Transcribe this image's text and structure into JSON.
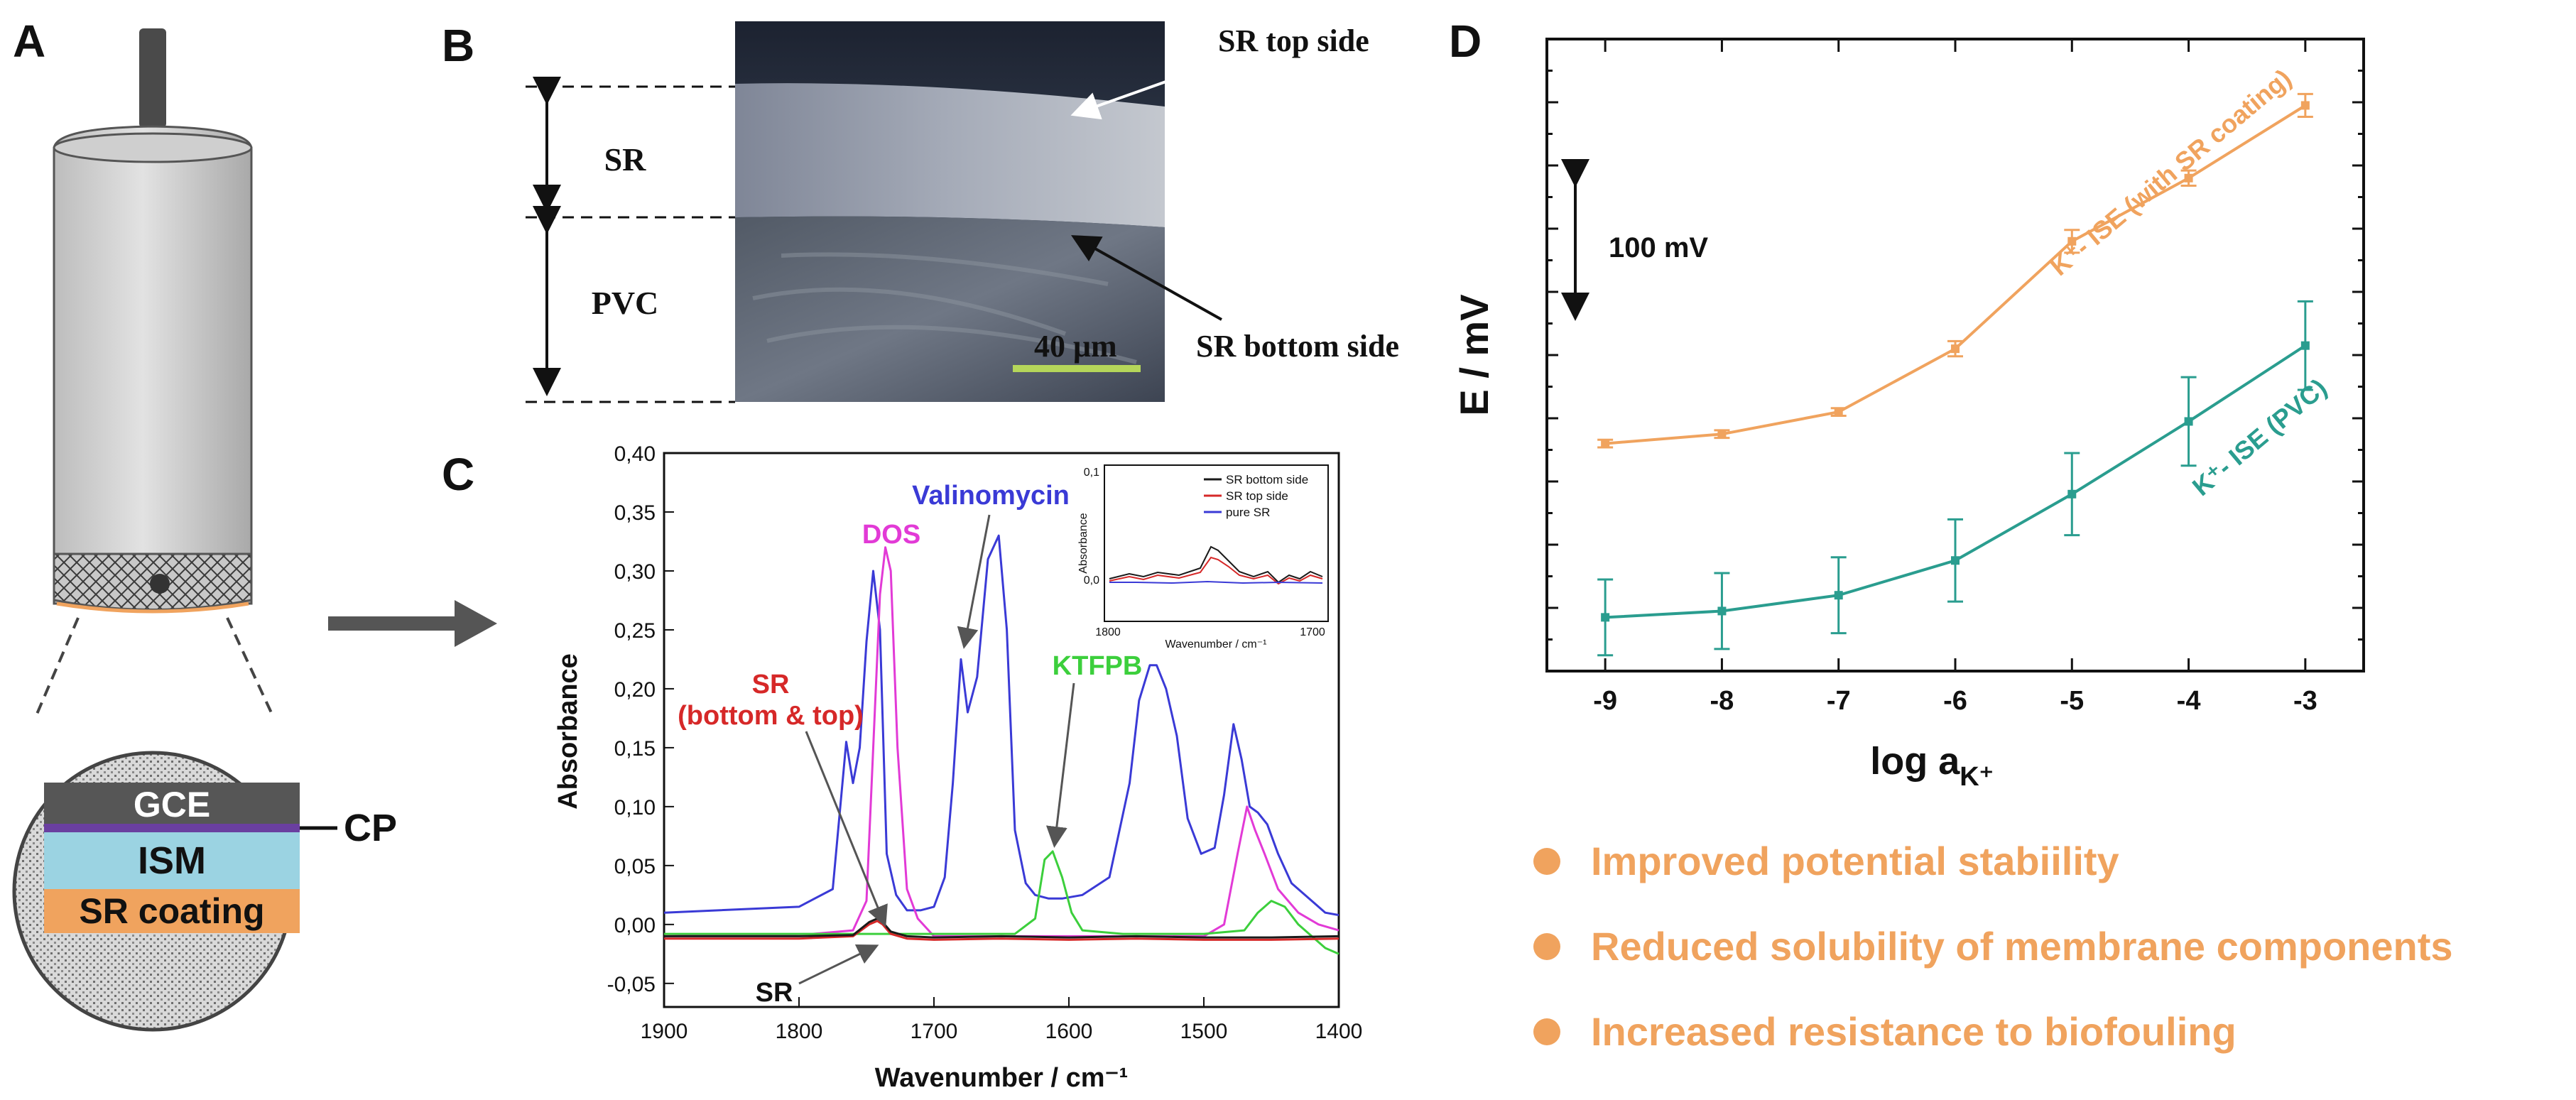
{
  "panels": {
    "a": {
      "label": "A",
      "layers": [
        {
          "name": "GCE",
          "color": "#565656",
          "text_color": "#ffffff"
        },
        {
          "name": "ISM",
          "color": "#9bd3e2",
          "text_color": "#111111"
        },
        {
          "name": "SR coating",
          "color": "#f0a35e",
          "text_color": "#111111"
        }
      ],
      "cp_label": "CP"
    },
    "b": {
      "label": "B",
      "sr_label": "SR",
      "pvc_label": "PVC",
      "top_side_label": "SR top side",
      "bottom_side_label": "SR bottom side",
      "scale_label": "40 μm"
    },
    "c": {
      "label": "C"
    },
    "d": {
      "label": "D"
    }
  },
  "chart_data": [
    {
      "id": "ftir",
      "type": "line",
      "xlabel": "Wavenumber / cm⁻¹",
      "ylabel": "Absorbance",
      "xlim": [
        1900,
        1400
      ],
      "ylim": [
        -0.07,
        0.4
      ],
      "xticks": [
        1900,
        1800,
        1700,
        1600,
        1500,
        1400
      ],
      "ytick_labels": [
        "-0,05",
        "0,00",
        "0,05",
        "0,10",
        "0,15",
        "0,20",
        "0,25",
        "0,30",
        "0,35",
        "0,40"
      ],
      "ytick_values": [
        -0.05,
        0,
        0.05,
        0.1,
        0.15,
        0.2,
        0.25,
        0.3,
        0.35,
        0.4
      ],
      "series": [
        {
          "name": "Valinomycin",
          "color": "#3a3ad6",
          "x": [
            1900,
            1800,
            1775,
            1765,
            1760,
            1755,
            1750,
            1745,
            1740,
            1735,
            1728,
            1720,
            1710,
            1700,
            1692,
            1686,
            1680,
            1675,
            1668,
            1660,
            1652,
            1646,
            1640,
            1632,
            1625,
            1615,
            1605,
            1590,
            1570,
            1555,
            1548,
            1540,
            1535,
            1528,
            1520,
            1512,
            1502,
            1492,
            1485,
            1478,
            1472,
            1466,
            1460,
            1453,
            1445,
            1435,
            1420,
            1410,
            1400
          ],
          "y": [
            0.01,
            0.015,
            0.03,
            0.155,
            0.12,
            0.15,
            0.24,
            0.3,
            0.25,
            0.06,
            0.025,
            0.012,
            0.012,
            0.015,
            0.04,
            0.12,
            0.225,
            0.18,
            0.21,
            0.31,
            0.33,
            0.25,
            0.08,
            0.035,
            0.025,
            0.022,
            0.022,
            0.025,
            0.04,
            0.12,
            0.19,
            0.22,
            0.22,
            0.2,
            0.16,
            0.09,
            0.06,
            0.065,
            0.11,
            0.17,
            0.14,
            0.1,
            0.095,
            0.085,
            0.06,
            0.035,
            0.02,
            0.01,
            0.008
          ]
        },
        {
          "name": "DOS",
          "color": "#e23ad6",
          "x": [
            1900,
            1790,
            1760,
            1750,
            1745,
            1740,
            1736,
            1732,
            1727,
            1720,
            1712,
            1700,
            1600,
            1500,
            1485,
            1475,
            1468,
            1462,
            1455,
            1445,
            1430,
            1415,
            1400
          ],
          "y": [
            -0.01,
            -0.008,
            -0.005,
            0.02,
            0.15,
            0.28,
            0.32,
            0.3,
            0.15,
            0.03,
            0.005,
            -0.01,
            -0.01,
            -0.01,
            0.0,
            0.06,
            0.1,
            0.08,
            0.06,
            0.03,
            0.01,
            0.0,
            -0.005
          ]
        },
        {
          "name": "KTFPB",
          "color": "#3ccf3c",
          "x": [
            1900,
            1640,
            1625,
            1618,
            1612,
            1605,
            1598,
            1590,
            1560,
            1500,
            1470,
            1460,
            1450,
            1440,
            1430,
            1420,
            1410,
            1400
          ],
          "y": [
            -0.008,
            -0.008,
            0.005,
            0.055,
            0.062,
            0.04,
            0.01,
            -0.005,
            -0.008,
            -0.008,
            -0.005,
            0.01,
            0.02,
            0.015,
            0.0,
            -0.01,
            -0.02,
            -0.025
          ]
        },
        {
          "name": "SR top side",
          "color": "#d62828",
          "x": [
            1900,
            1800,
            1760,
            1748,
            1742,
            1738,
            1732,
            1720,
            1700,
            1650,
            1600,
            1550,
            1500,
            1450,
            1400
          ],
          "y": [
            -0.012,
            -0.012,
            -0.01,
            0.0,
            0.003,
            0.0,
            -0.008,
            -0.012,
            -0.013,
            -0.012,
            -0.013,
            -0.012,
            -0.013,
            -0.013,
            -0.012
          ]
        },
        {
          "name": "SR bottom side",
          "color": "#1a1a1a",
          "x": [
            1900,
            1800,
            1760,
            1748,
            1742,
            1738,
            1732,
            1720,
            1700,
            1650,
            1600,
            1550,
            1500,
            1450,
            1400
          ],
          "y": [
            -0.01,
            -0.01,
            -0.009,
            0.002,
            0.005,
            0.002,
            -0.006,
            -0.01,
            -0.011,
            -0.01,
            -0.011,
            -0.01,
            -0.011,
            -0.011,
            -0.01
          ]
        }
      ],
      "annotations": {
        "dos": "DOS",
        "valinomycin": "Valinomycin",
        "ktfpb": "KTFPB",
        "sr_top": "SR",
        "sr_bottom_top": "(bottom & top)",
        "sr_bottom": "SR"
      },
      "inset": {
        "xlabel": "Wavenumber / cm⁻¹",
        "ylabel": "Absorbance",
        "x_tick_labels": [
          "1800",
          "1700"
        ],
        "y_tick_labels": [
          "0,0",
          "0,1"
        ],
        "legend": [
          {
            "name": "SR bottom side",
            "color": "#1a1a1a"
          },
          {
            "name": "SR top side",
            "color": "#d62828"
          },
          {
            "name": "pure SR",
            "color": "#3a3ad6"
          }
        ]
      }
    },
    {
      "id": "potentiometry",
      "type": "line",
      "xlabel": "log a",
      "xlabel_sub": "K⁺",
      "ylabel": "E / mV",
      "xlim": [
        -9.5,
        -2.5
      ],
      "ylim": [
        0,
        10
      ],
      "x_tick_labels": [
        "-9",
        "-8",
        "-7",
        "-6",
        "-5",
        "-4",
        "-3"
      ],
      "x": [
        -9,
        -8,
        -7,
        -6,
        -5,
        -4,
        -3
      ],
      "scale_bar_label": "100 mV",
      "series": [
        {
          "name": "K⁺- ISE (with SR coating)",
          "color": "#f0a35e",
          "y": [
            3.6,
            3.75,
            4.1,
            5.1,
            6.8,
            7.8,
            8.95
          ],
          "err": [
            0.06,
            0.06,
            0.06,
            0.12,
            0.18,
            0.12,
            0.18
          ]
        },
        {
          "name": "K⁺- ISE (PVC)",
          "color": "#2a9d8f",
          "y": [
            0.85,
            0.95,
            1.2,
            1.75,
            2.8,
            3.95,
            5.15
          ],
          "err": [
            0.6,
            0.6,
            0.6,
            0.65,
            0.65,
            0.7,
            0.7
          ]
        }
      ]
    }
  ],
  "bullets": [
    {
      "text": "Improved potential stabiility"
    },
    {
      "text": "Reduced solubility of membrane components"
    },
    {
      "text": "Increased resistance to biofouling"
    }
  ],
  "colors": {
    "accent_orange": "#f0a35e",
    "teal": "#2a9d8f",
    "ism_blue": "#9bd3e2",
    "gce_grey": "#565656",
    "cp_purple": "#6a3fa0"
  }
}
